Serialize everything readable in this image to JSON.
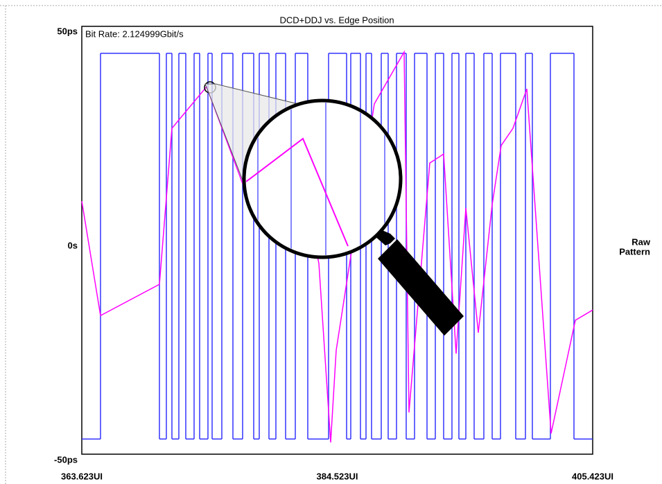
{
  "chart_data": {
    "type": "line",
    "title": "DCD+DDJ vs. Edge Position",
    "annotation": "Bit Rate: 2.124999Gbit/s",
    "xlim": [
      363.623,
      405.423
    ],
    "xticks": [
      {
        "value": 363.623,
        "label": "363.623UI"
      },
      {
        "value": 384.523,
        "label": "384.523UI"
      },
      {
        "value": 405.423,
        "label": "405.423UI"
      }
    ],
    "ylim": [
      -50,
      50
    ],
    "yticks": [
      {
        "value": 50,
        "label": "50ps"
      },
      {
        "value": 0,
        "label": "0s"
      },
      {
        "value": -50,
        "label": "-50ps"
      }
    ],
    "legend": "right",
    "series": [
      {
        "name": "Raw",
        "color": "#ff00ff",
        "x": [
          363.623,
          365.154,
          369.975,
          370.996,
          373.832,
          376.781,
          381.318,
          383.02,
          383.984,
          384.438,
          387.557,
          389.996,
          390.393,
          392.094,
          393.228,
          394.25,
          395.044,
          396.065,
          397.199,
          397.937,
          398.901,
          400.035,
          402.02,
          404.005,
          405.423
        ],
        "values": [
          10.5,
          -16.2,
          -8.9,
          27.5,
          37.2,
          14.6,
          18.6,
          -4.0,
          -45.8,
          -24.3,
          33.2,
          45.3,
          -38.8,
          19.4,
          21.5,
          -25.1,
          8.9,
          -20.2,
          9.7,
          23.5,
          27.5,
          36.7,
          -43.7,
          -17.3,
          -14.9
        ]
      },
      {
        "name": "Pattern",
        "color": "#3333ff",
        "drawstyle": "steps-post",
        "x": [
          363.623,
          365.154,
          369.975,
          370.542,
          370.996,
          371.563,
          372.13,
          372.811,
          373.265,
          373.945,
          374.286,
          375.08,
          375.987,
          376.781,
          377.689,
          378.142,
          378.936,
          379.503,
          380.298,
          381.092,
          382.112,
          383.814,
          385.289,
          385.629,
          386.423,
          386.877,
          387.33,
          388.124,
          388.691,
          389.372,
          390.166,
          390.847,
          391.868,
          392.548,
          393.229,
          393.909,
          394.476,
          395.044,
          395.724,
          396.518,
          397.199,
          397.879,
          399.127,
          399.921,
          400.488,
          401.963,
          403.891
        ],
        "values": [
          -45,
          45,
          -45,
          45,
          -45,
          45,
          -45,
          45,
          -45,
          45,
          -45,
          45,
          -45,
          45,
          -45,
          45,
          -45,
          45,
          -45,
          45,
          -45,
          45,
          -45,
          45,
          -45,
          45,
          -45,
          45,
          -45,
          45,
          -45,
          45,
          -45,
          45,
          -45,
          45,
          -45,
          45,
          -45,
          45,
          -45,
          45,
          -45,
          45,
          -45,
          45,
          -45
        ]
      }
    ]
  }
}
